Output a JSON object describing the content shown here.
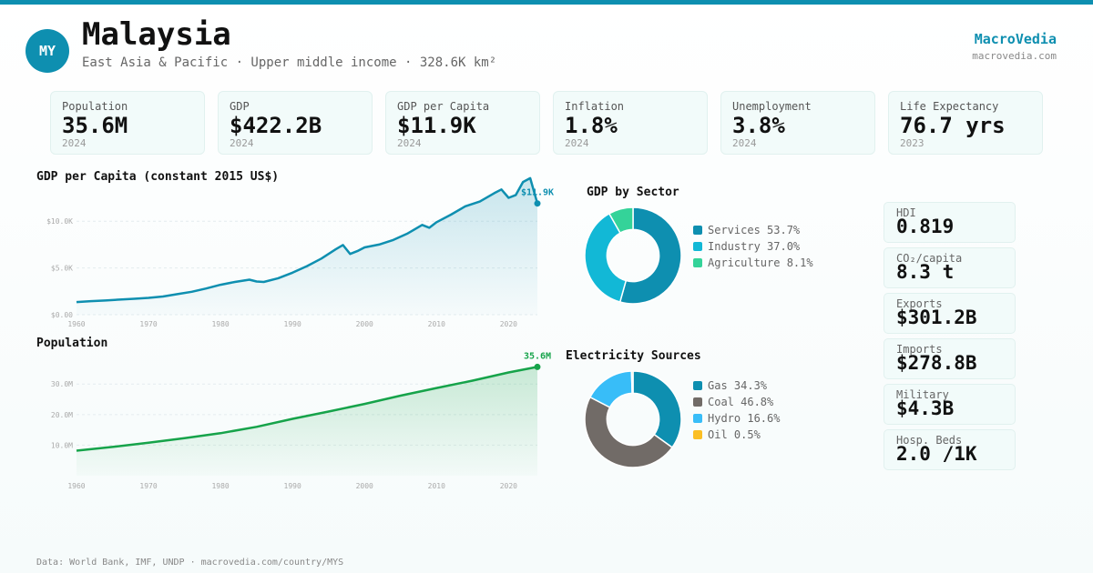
{
  "header": {
    "badge": "MY",
    "country": "Malaysia",
    "subtitle": "East Asia & Pacific · Upper middle income · 328.6K km²",
    "brand": "MacroVedia",
    "brand_url": "macrovedia.com",
    "accent": "#0e8fb0"
  },
  "kpis": [
    {
      "label": "Population",
      "value": "35.6M",
      "year": "2024"
    },
    {
      "label": "GDP",
      "value": "$422.2B",
      "year": "2024"
    },
    {
      "label": "GDP per Capita",
      "value": "$11.9K",
      "year": "2024"
    },
    {
      "label": "Inflation",
      "value": "1.8%",
      "year": "2024"
    },
    {
      "label": "Unemployment",
      "value": "3.8%",
      "year": "2024"
    },
    {
      "label": "Life Expectancy",
      "value": "76.7 yrs",
      "year": "2023"
    }
  ],
  "side_stats": [
    {
      "label": "HDI",
      "value": "0.819"
    },
    {
      "label": "CO₂/capita",
      "value": "8.3 t"
    },
    {
      "label": "Exports",
      "value": "$301.2B"
    },
    {
      "label": "Imports",
      "value": "$278.8B"
    },
    {
      "label": "Military",
      "value": "$4.3B"
    },
    {
      "label": "Hosp. Beds",
      "value": "2.0 /1K"
    }
  ],
  "footer": "Data: World Bank, IMF, UNDP · macrovedia.com/country/MYS",
  "chart_data": [
    {
      "type": "area",
      "title": "GDP per Capita (constant 2015 US$)",
      "color": "#0e8fb0",
      "end_label": "$11.9K",
      "y_ticks": [
        0,
        5000,
        10000
      ],
      "y_tick_labels": [
        "$0.00",
        "$5.0K",
        "$10.0K"
      ],
      "ylim": [
        0,
        10800
      ],
      "xlim": [
        1960,
        2024
      ],
      "x_ticks": [
        1960,
        1970,
        1980,
        1990,
        2000,
        2010,
        2020
      ],
      "x_tick_labels": [
        "1960",
        "1970",
        "1980",
        "1990",
        "2000",
        "2010",
        "2020"
      ],
      "x": [
        1960,
        1962,
        1964,
        1966,
        1968,
        1970,
        1972,
        1974,
        1976,
        1978,
        1980,
        1982,
        1984,
        1985,
        1986,
        1988,
        1990,
        1992,
        1994,
        1996,
        1997,
        1998,
        1999,
        2000,
        2002,
        2004,
        2006,
        2008,
        2009,
        2010,
        2012,
        2014,
        2016,
        2018,
        2019,
        2020,
        2021,
        2022,
        2023,
        2024
      ],
      "y": [
        1350,
        1450,
        1520,
        1620,
        1700,
        1800,
        1950,
        2200,
        2450,
        2800,
        3200,
        3500,
        3750,
        3550,
        3500,
        3900,
        4500,
        5200,
        6000,
        7000,
        7450,
        6500,
        6800,
        7200,
        7500,
        8000,
        8700,
        9600,
        9300,
        9900,
        10700,
        11600,
        12100,
        13000,
        13400,
        12500,
        12800,
        14200,
        14600,
        11900
      ]
    },
    {
      "type": "pie",
      "title": "GDP by Sector",
      "labels": [
        "Services",
        "Industry",
        "Agriculture"
      ],
      "values": [
        53.7,
        37.0,
        8.1
      ],
      "legend": [
        "Services 53.7%",
        "Industry 37.0%",
        "Agriculture 8.1%"
      ],
      "colors": [
        "#0e8fb0",
        "#12b8d6",
        "#34d399"
      ]
    },
    {
      "type": "area",
      "title": "Population",
      "color": "#16a34a",
      "end_label": "35.6M",
      "y_ticks": [
        10000000,
        20000000,
        30000000
      ],
      "y_tick_labels": [
        "10.0M",
        "20.0M",
        "30.0M"
      ],
      "ylim": [
        0,
        38700000
      ],
      "xlim": [
        1960,
        2024
      ],
      "x_ticks": [
        1960,
        1970,
        1980,
        1990,
        2000,
        2010,
        2020
      ],
      "x_tick_labels": [
        "1960",
        "1970",
        "1980",
        "1990",
        "2000",
        "2010",
        "2020"
      ],
      "x": [
        1960,
        1965,
        1970,
        1975,
        1980,
        1985,
        1990,
        1995,
        2000,
        2005,
        2010,
        2015,
        2020,
        2024
      ],
      "y": [
        8200000,
        9400000,
        10800000,
        12300000,
        13900000,
        16000000,
        18600000,
        21000000,
        23500000,
        26200000,
        28700000,
        31100000,
        33800000,
        35600000
      ]
    },
    {
      "type": "pie",
      "title": "Electricity Sources",
      "labels": [
        "Gas",
        "Coal",
        "Hydro",
        "Oil"
      ],
      "values": [
        34.3,
        46.8,
        16.6,
        0.5
      ],
      "legend": [
        "Gas 34.3%",
        "Coal 46.8%",
        "Hydro 16.6%",
        "Oil 0.5%"
      ],
      "colors": [
        "#0e8fb0",
        "#716b67",
        "#38bdf8",
        "#fbbf24"
      ]
    }
  ]
}
